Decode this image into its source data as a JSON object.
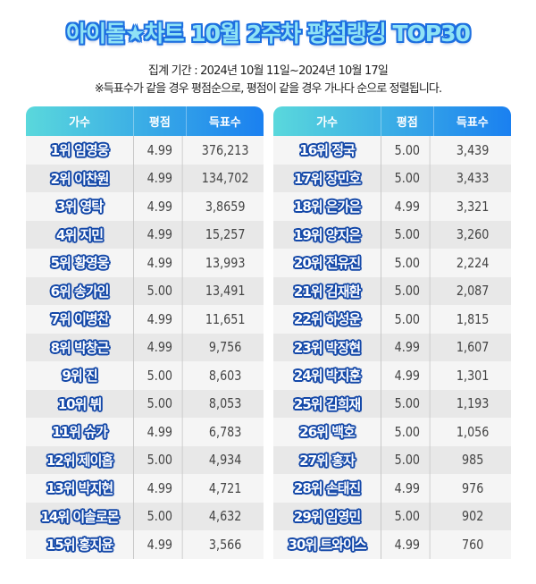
{
  "title": "아이돌★차트 10월 2주차 평점랭킹 TOP30",
  "period": "집계 기간 : 2024년 10월 11일~2024년 10월 17일",
  "note": "※득표수가 같을 경우 평점순으로, 평점이 같을 경우 가나다 순으로 정렬됩니다.",
  "colors": {
    "header_start": "#5ad8dc",
    "header_end": "#1a80f0",
    "name_outline": "#1448a8"
  },
  "headers": {
    "singer": "가수",
    "score": "평점",
    "votes": "득표수"
  },
  "tables": [
    {
      "rows": [
        {
          "rank_name": "1위 임영웅",
          "score": "4.99",
          "votes": "376,213"
        },
        {
          "rank_name": "2위 이찬원",
          "score": "4.99",
          "votes": "134,702"
        },
        {
          "rank_name": "3위 영탁",
          "score": "4.99",
          "votes": "3,8659"
        },
        {
          "rank_name": "4위 지민",
          "score": "4.99",
          "votes": "15,257"
        },
        {
          "rank_name": "5위 황영웅",
          "score": "4.99",
          "votes": "13,993"
        },
        {
          "rank_name": "6위 송가인",
          "score": "5.00",
          "votes": "13,491"
        },
        {
          "rank_name": "7위 이병찬",
          "score": "4.99",
          "votes": "11,651"
        },
        {
          "rank_name": "8위 박창근",
          "score": "4.99",
          "votes": "9,756"
        },
        {
          "rank_name": "9위 진",
          "score": "5.00",
          "votes": "8,603"
        },
        {
          "rank_name": "10위 뷔",
          "score": "5.00",
          "votes": "8,053"
        },
        {
          "rank_name": "11위 슈가",
          "score": "4.99",
          "votes": "6,783"
        },
        {
          "rank_name": "12위 제이홉",
          "score": "5.00",
          "votes": "4,934"
        },
        {
          "rank_name": "13위 박지현",
          "score": "4.99",
          "votes": "4,721"
        },
        {
          "rank_name": "14위 이솔로몬",
          "score": "5.00",
          "votes": "4,632"
        },
        {
          "rank_name": "15위 홍지윤",
          "score": "4.99",
          "votes": "3,566"
        }
      ]
    },
    {
      "rows": [
        {
          "rank_name": "16위 정국",
          "score": "5.00",
          "votes": "3,439"
        },
        {
          "rank_name": "17위 장민호",
          "score": "5.00",
          "votes": "3,433"
        },
        {
          "rank_name": "18위 은가은",
          "score": "4.99",
          "votes": "3,321"
        },
        {
          "rank_name": "19위 양지은",
          "score": "5.00",
          "votes": "3,260"
        },
        {
          "rank_name": "20위 전유진",
          "score": "5.00",
          "votes": "2,224"
        },
        {
          "rank_name": "21위 김재환",
          "score": "5.00",
          "votes": "2,087"
        },
        {
          "rank_name": "22위 하성운",
          "score": "5.00",
          "votes": "1,815"
        },
        {
          "rank_name": "23위 박장현",
          "score": "4.99",
          "votes": "1,607"
        },
        {
          "rank_name": "24위 박지훈",
          "score": "4.99",
          "votes": "1,301"
        },
        {
          "rank_name": "25위 김희재",
          "score": "5.00",
          "votes": "1,193"
        },
        {
          "rank_name": "26위 백호",
          "score": "5.00",
          "votes": "1,056"
        },
        {
          "rank_name": "27위 홍자",
          "score": "5.00",
          "votes": "985"
        },
        {
          "rank_name": "28위 손태진",
          "score": "4.99",
          "votes": "976"
        },
        {
          "rank_name": "29위 임영민",
          "score": "5.00",
          "votes": "902"
        },
        {
          "rank_name": "30위 트와이스",
          "score": "4.99",
          "votes": "760"
        }
      ]
    }
  ]
}
